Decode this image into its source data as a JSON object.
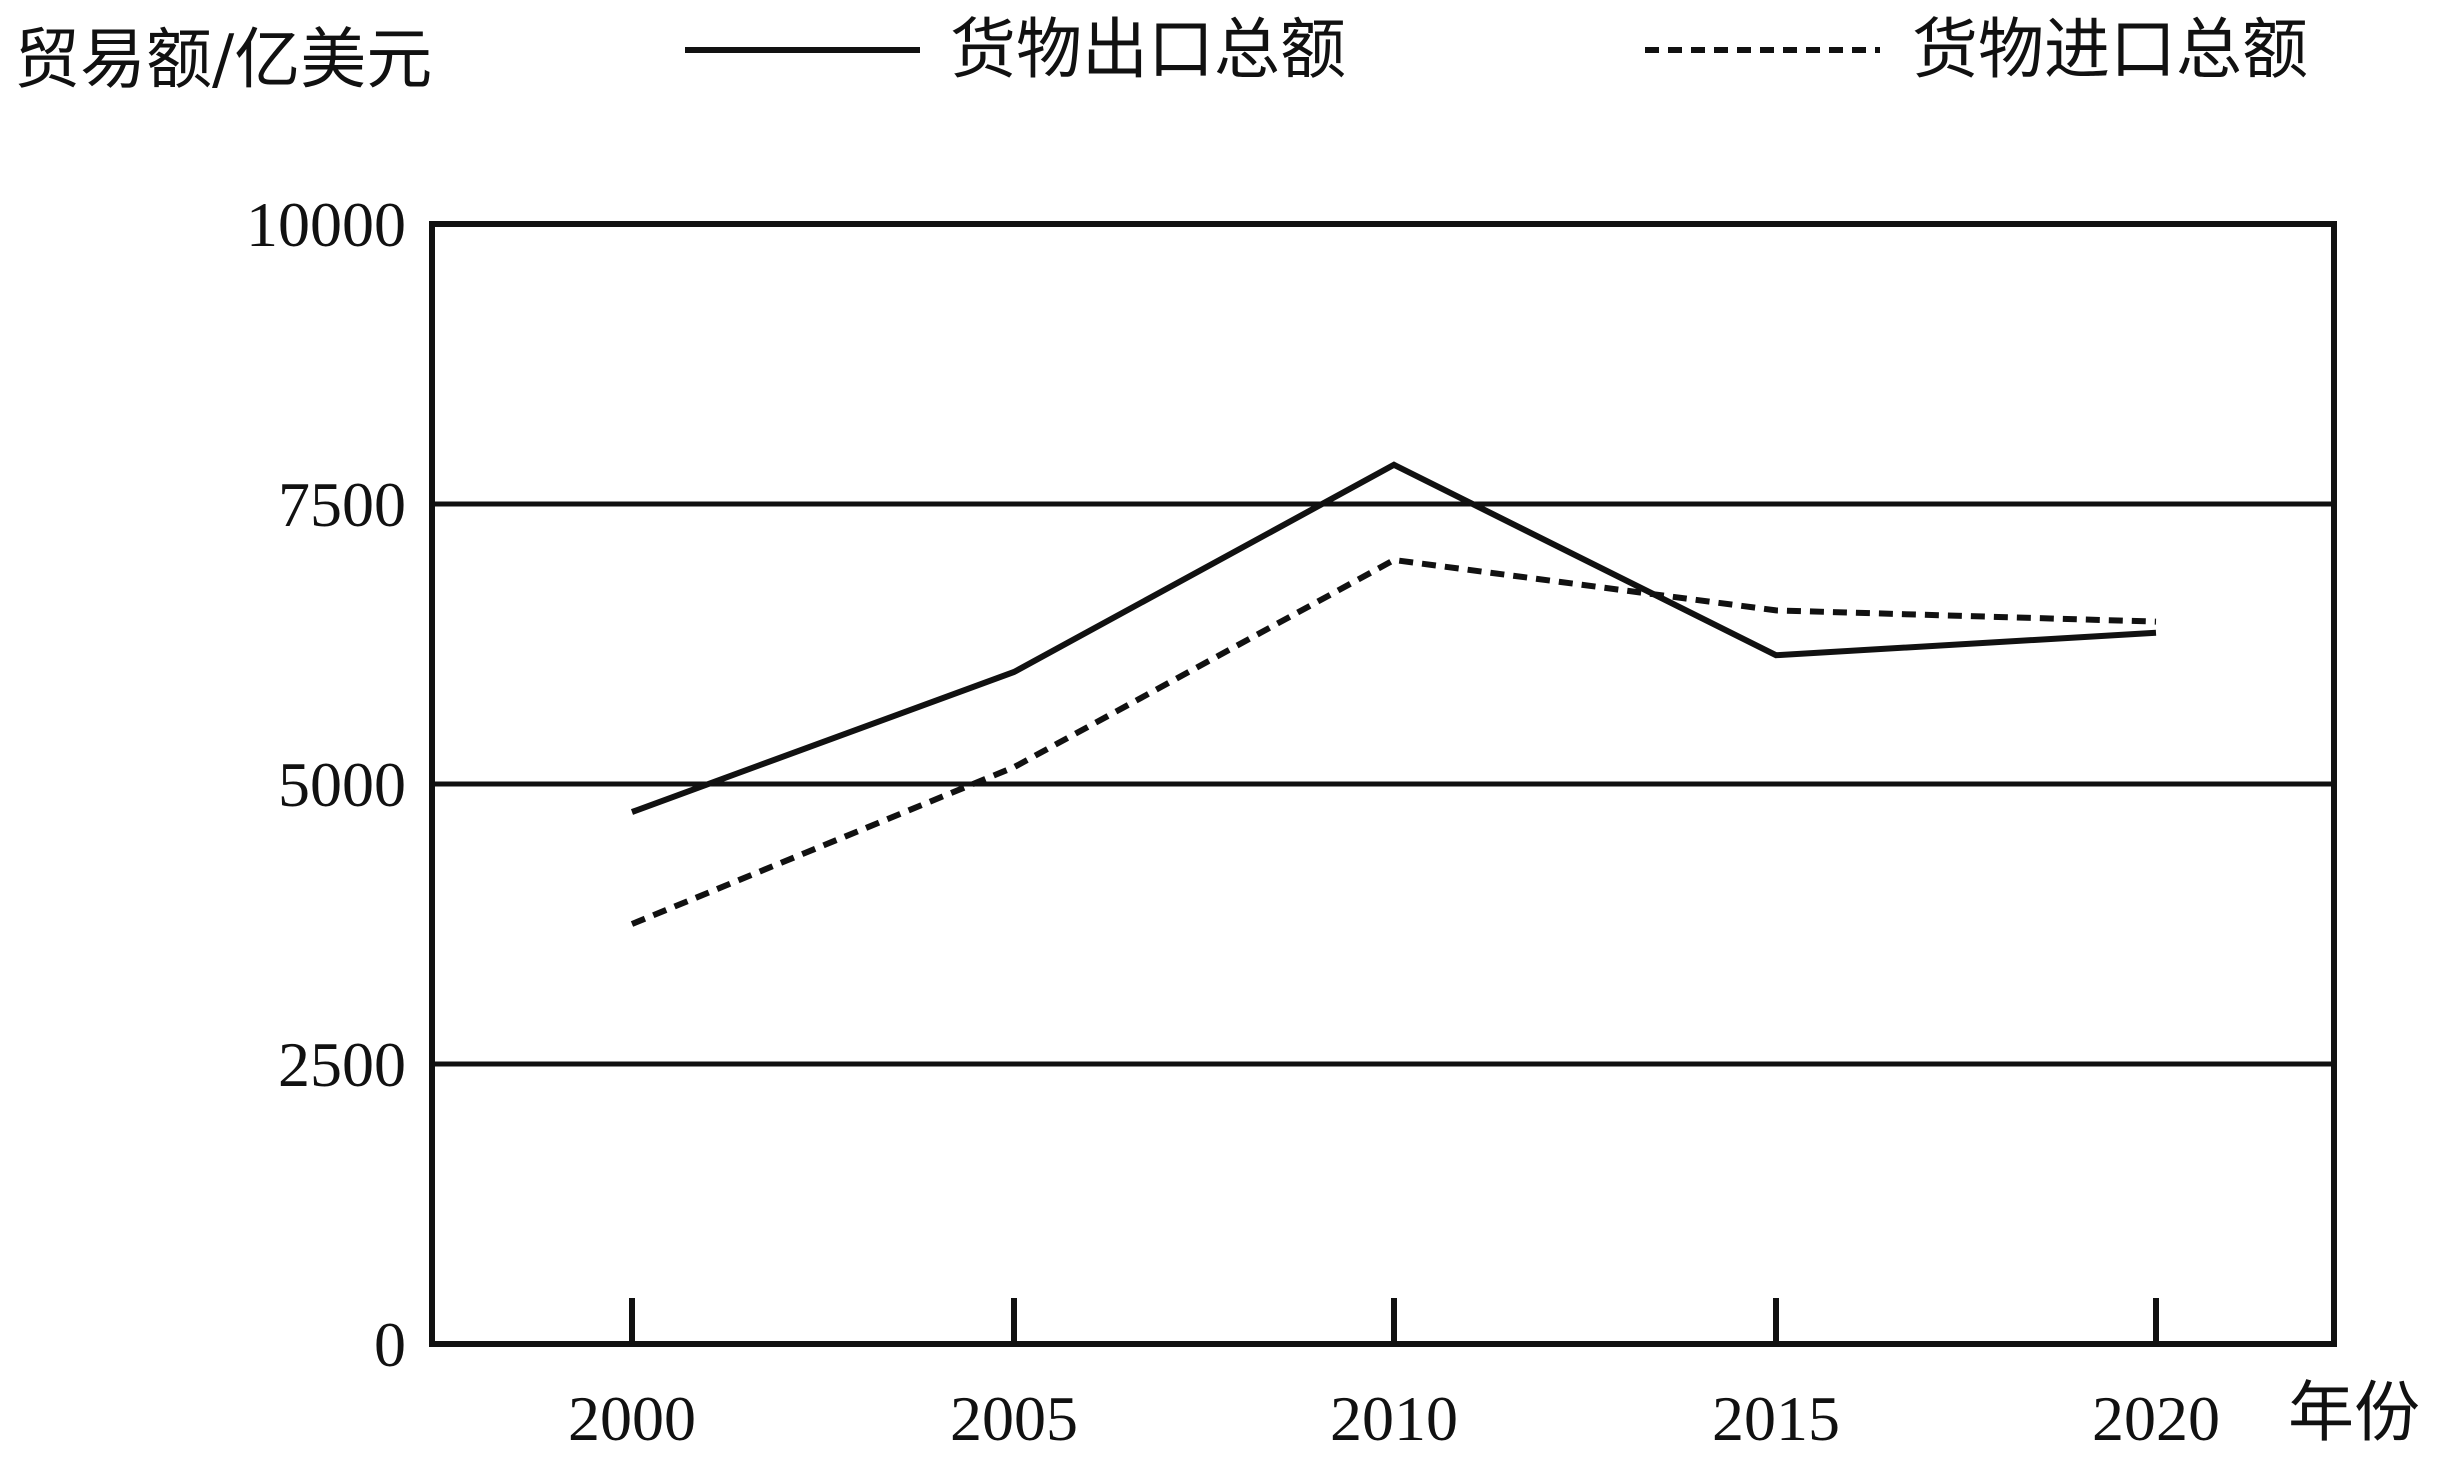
{
  "chart_data": {
    "type": "line",
    "ylabel": "贸易额/亿美元",
    "xlabel": "年份",
    "x": [
      2000,
      2005,
      2010,
      2015,
      2020
    ],
    "x_tick_labels": [
      "2000",
      "2005",
      "2010",
      "2015",
      "2020"
    ],
    "y_tick_labels": [
      "0",
      "2500",
      "5000",
      "7500",
      "10000"
    ],
    "y_ticks": [
      0,
      2500,
      5000,
      7500,
      10000
    ],
    "ylim": [
      0,
      10000
    ],
    "grid": "horizontal",
    "legend_position": "top",
    "series": [
      {
        "name": "货物出口总额",
        "style": "solid",
        "color": "#111111",
        "values": [
          4750,
          6000,
          7850,
          6150,
          6350
        ]
      },
      {
        "name": "货物进口总额",
        "style": "dashed",
        "color": "#111111",
        "values": [
          3750,
          5150,
          7000,
          6550,
          6450
        ]
      }
    ]
  }
}
